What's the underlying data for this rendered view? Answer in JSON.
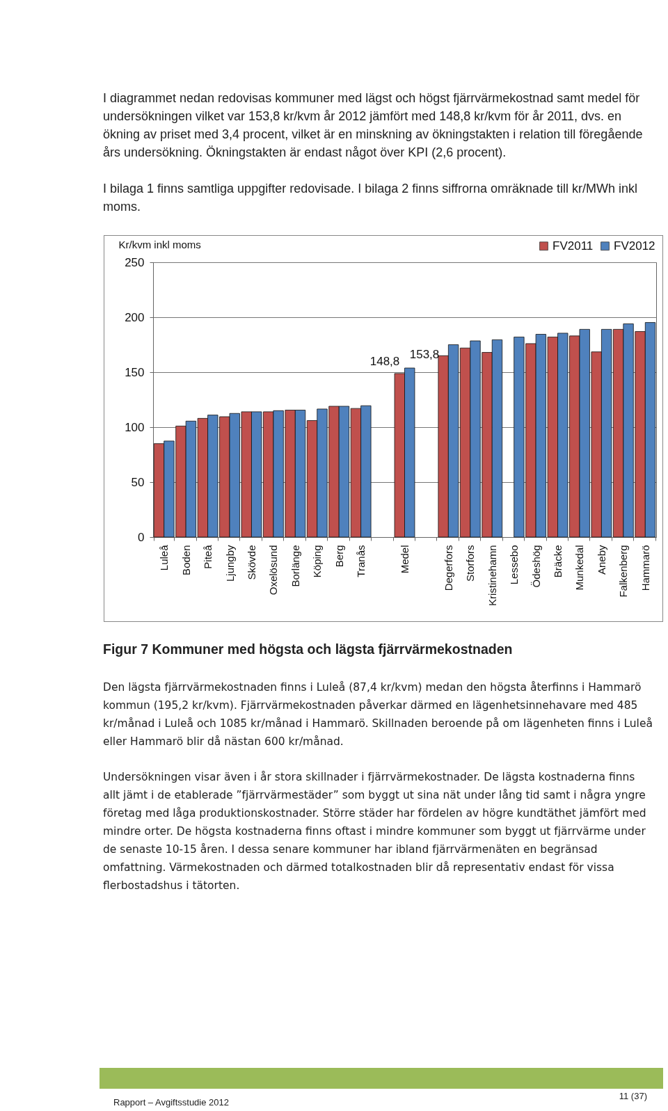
{
  "chart_data": {
    "type": "bar",
    "title": "Figur 7 Kommuner med högsta och lägsta fjärrvärmekostnaden",
    "ylabel": "Kr/kvm inkl moms",
    "categories": [
      "Luleå",
      "Boden",
      "Piteå",
      "Ljungby",
      "Skövde",
      "Oxelösund",
      "Borlänge",
      "Köping",
      "Berg",
      "Tranås",
      null,
      "Medel",
      null,
      "Degerfors",
      "Storfors",
      "Kristinehamn",
      "Lessebo",
      "Ödeshög",
      "Bräcke",
      "Munkedal",
      "Aneby",
      "Falkenberg",
      "Hammarö"
    ],
    "series": [
      {
        "name": "FV2011",
        "color": "#c0504d",
        "values": [
          85,
          101,
          108,
          109.5,
          114,
          114,
          115.5,
          106,
          119,
          117,
          null,
          148.8,
          null,
          165,
          172,
          168,
          null,
          176,
          182,
          183,
          168.5,
          189,
          187
        ],
        "value_labels": [
          null,
          null,
          null,
          null,
          null,
          null,
          null,
          null,
          null,
          null,
          null,
          "148,8",
          null,
          null,
          null,
          null,
          null,
          null,
          null,
          null,
          null,
          null,
          null
        ]
      },
      {
        "name": "FV2012",
        "color": "#4f81bd",
        "values": [
          87.4,
          105.5,
          111,
          112.5,
          114,
          115,
          115.5,
          116.5,
          119,
          119.5,
          null,
          153.8,
          null,
          175,
          178.5,
          179.5,
          182,
          184.5,
          185.5,
          189,
          189,
          194,
          195.2
        ],
        "value_labels": [
          null,
          null,
          null,
          null,
          null,
          null,
          null,
          null,
          null,
          null,
          null,
          "153,8",
          null,
          null,
          null,
          null,
          null,
          null,
          null,
          null,
          null,
          null,
          null
        ]
      }
    ],
    "ylim": [
      0,
      250
    ],
    "yticks": [
      0,
      50,
      100,
      150,
      200,
      250
    ],
    "grid": "y",
    "legend": "top right",
    "annotations": [
      "I diagrammet nedan redovisas kommuner med lägst och högst fjärrvärmekostnad samt medel för undersökningen vilket var 153,8 kr/kvm år 2012 jämfört med 148,8 kr/kvm för år 2011, dvs. en ökning av priset med 3,4 procent, vilket är en minskning av ökningstakten i relation till föregående års undersökning. Ökningstakten är endast något över KPI (2,6 procent).",
      "I bilaga 1 finns samtliga uppgifter redovisade. I bilaga 2 finns siffrorna omräknade till kr/MWh inkl moms.",
      "Den lägsta fjärrvärmekostnaden finns i Luleå (87,4 kr/kvm) medan den högsta återfinns i Hammarö kommun (195,2 kr/kvm). Fjärrvärmekostnaden påverkar därmed en lägenhetsinnehavare med 485 kr/månad i Luleå och 1085 kr/månad i Hammarö. Skillnaden beroende på om lägenheten finns i Luleå eller Hammarö blir då nästan 600 kr/månad.",
      "Undersökningen visar även i år stora skillnader i fjärrvärmekostnader. De lägsta kostnaderna finns allt jämt i de etablerade ”fjärrvärmestäder” som byggt ut sina nät under lång tid samt i några yngre företag med låga produktionskostnader. Större städer har fördelen av högre kundtäthet jämfört med mindre orter. De högsta kostnaderna finns oftast i mindre kommuner som byggt ut fjärrvärme under de senaste 10-15 åren. I dessa senare kommuner har ibland fjärrvärmenäten en begränsad omfattning. Värmekostnaden och därmed totalkostnaden blir då representativ endast för vissa flerbostadshus i tätorten.",
      "Rapport – Avgiftsstudie 2012",
      "11 (37)"
    ]
  }
}
